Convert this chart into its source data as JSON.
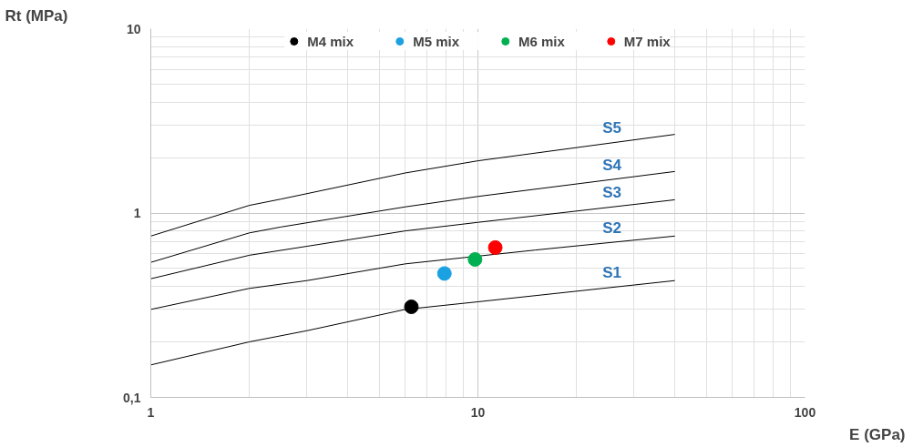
{
  "chart_data": {
    "type": "line",
    "xlabel": "E (GPa)",
    "ylabel": "Rt (MPa)",
    "log": "xy",
    "xlim": [
      1,
      100
    ],
    "ylim": [
      0.1,
      10
    ],
    "xticks": [
      1,
      10,
      100
    ],
    "yticks": [
      {
        "value": 0.1,
        "label": "0,1"
      },
      1,
      10
    ],
    "grid": true,
    "legend": "top",
    "marker": "none",
    "line_style": "solid",
    "series": [
      {
        "name": "S1",
        "color": "#000000",
        "x": [
          1,
          2,
          3,
          6,
          10,
          40
        ],
        "values": [
          0.15,
          0.2,
          0.23,
          0.3,
          0.33,
          0.43
        ]
      },
      {
        "name": "S2",
        "color": "#000000",
        "x": [
          1,
          2,
          3,
          6,
          15,
          40
        ],
        "values": [
          0.3,
          0.39,
          0.43,
          0.53,
          0.63,
          0.75
        ]
      },
      {
        "name": "S3",
        "color": "#000000",
        "x": [
          1,
          2,
          3,
          6,
          10,
          40
        ],
        "values": [
          0.44,
          0.59,
          0.66,
          0.8,
          0.89,
          1.18
        ]
      },
      {
        "name": "S4",
        "color": "#000000",
        "x": [
          1,
          2,
          2.5,
          6,
          10,
          40
        ],
        "values": [
          0.54,
          0.78,
          0.84,
          1.08,
          1.23,
          1.68
        ]
      },
      {
        "name": "S5",
        "color": "#000000",
        "x": [
          1,
          2,
          2.5,
          6,
          10,
          40
        ],
        "values": [
          0.75,
          1.1,
          1.19,
          1.65,
          1.92,
          2.67
        ]
      },
      {
        "type": "scatter",
        "marker": "circle",
        "name": "M4 mix",
        "color": "#000000",
        "x": [
          6.26
        ],
        "values": [
          0.31
        ]
      },
      {
        "type": "scatter",
        "marker": "circle",
        "name": "M5 mix",
        "color": "#1ba1e2",
        "x": [
          7.9
        ],
        "values": [
          0.47
        ]
      },
      {
        "type": "scatter",
        "marker": "circle",
        "name": "M6 mix",
        "color": "#00b050",
        "x": [
          9.8
        ],
        "values": [
          0.56
        ]
      },
      {
        "type": "scatter",
        "marker": "circle",
        "name": "M7 mix",
        "color": "#ff0000",
        "x": [
          11.3
        ],
        "values": [
          0.65
        ]
      }
    ]
  }
}
